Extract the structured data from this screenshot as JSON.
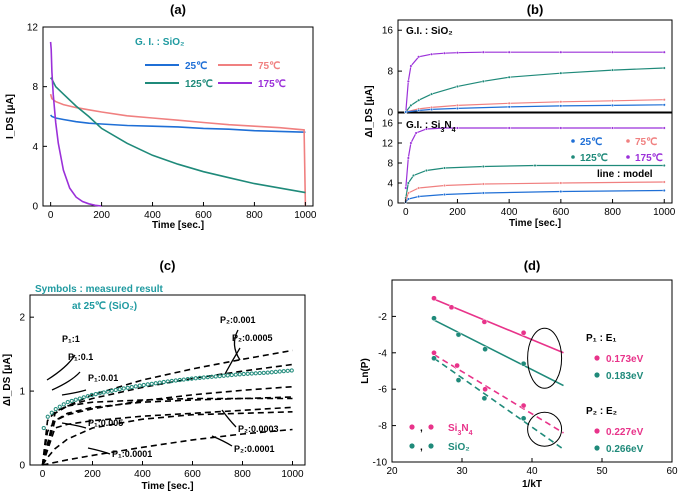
{
  "colors": {
    "c25": "#1f6fd6",
    "c75": "#f08080",
    "c125": "#1f8a7a",
    "c175": "#9b30d9",
    "pink": "#e8338a",
    "teal": "#1f8a7a",
    "tealText": "#1f9aa0"
  },
  "chart_data": [
    {
      "id": "a",
      "type": "line",
      "title": "(a)",
      "xlabel": "Time [sec.]",
      "ylabel": "I_DS [μA]",
      "xlim": [
        -30,
        1030
      ],
      "ylim": [
        0,
        12
      ],
      "xticks": [
        0,
        200,
        400,
        600,
        800,
        1000
      ],
      "yticks": [
        0,
        4,
        8,
        12
      ],
      "legend_title": "G. I. : SiO₂",
      "series": [
        {
          "name": "25℃",
          "color": "#1f6fd6",
          "x": [
            0,
            5,
            20,
            50,
            100,
            150,
            200,
            300,
            400,
            500,
            600,
            700,
            800,
            900,
            1000
          ],
          "y": [
            6.1,
            6.0,
            5.9,
            5.8,
            5.65,
            5.55,
            5.5,
            5.4,
            5.35,
            5.3,
            5.2,
            5.15,
            5.05,
            5.0,
            4.95
          ]
        },
        {
          "name": "75℃",
          "color": "#f08080",
          "x": [
            0,
            5,
            20,
            50,
            100,
            150,
            200,
            300,
            400,
            500,
            600,
            700,
            800,
            900,
            995,
            1000
          ],
          "y": [
            7.5,
            7.2,
            7.0,
            6.8,
            6.6,
            6.45,
            6.3,
            6.05,
            5.9,
            5.75,
            5.6,
            5.45,
            5.35,
            5.25,
            5.1,
            0
          ]
        },
        {
          "name": "125℃",
          "color": "#1f8a7a",
          "x": [
            0,
            5,
            20,
            50,
            100,
            150,
            200,
            300,
            400,
            500,
            600,
            700,
            800,
            900,
            1000
          ],
          "y": [
            8.6,
            8.5,
            8.0,
            7.5,
            6.7,
            6.0,
            5.2,
            4.2,
            3.4,
            2.8,
            2.3,
            1.9,
            1.5,
            1.2,
            0.9
          ]
        },
        {
          "name": "175℃",
          "color": "#9b30d9",
          "x": [
            0,
            2,
            5,
            10,
            20,
            30,
            50,
            75,
            100,
            125,
            150,
            175,
            200
          ],
          "y": [
            11.0,
            10.5,
            9.0,
            7.5,
            5.6,
            4.2,
            2.4,
            1.2,
            0.6,
            0.3,
            0.15,
            0.05,
            0
          ]
        }
      ]
    },
    {
      "id": "b_top",
      "type": "line",
      "title": "(b)",
      "xlim": [
        -30,
        1030
      ],
      "ylim": [
        0,
        18
      ],
      "yticks": [
        0,
        8,
        16
      ],
      "legend_title": "G.I. : SiO₂",
      "series": [
        {
          "name": "175℃",
          "color": "#9b30d9",
          "x": [
            0,
            10,
            20,
            50,
            100,
            150,
            200,
            300,
            400,
            600,
            800,
            1000
          ],
          "y": [
            0,
            6,
            9,
            10.8,
            11.3,
            11.5,
            11.6,
            11.7,
            11.7,
            11.7,
            11.7,
            11.7
          ]
        },
        {
          "name": "125℃",
          "color": "#1f8a7a",
          "x": [
            0,
            20,
            50,
            100,
            200,
            300,
            400,
            600,
            800,
            1000
          ],
          "y": [
            0,
            1.3,
            2.3,
            3.5,
            5,
            6,
            6.8,
            7.6,
            8.2,
            8.6
          ]
        },
        {
          "name": "75℃",
          "color": "#f08080",
          "x": [
            0,
            50,
            100,
            200,
            400,
            600,
            800,
            1000
          ],
          "y": [
            0,
            0.6,
            0.9,
            1.3,
            1.7,
            2.0,
            2.2,
            2.4
          ]
        },
        {
          "name": "25℃",
          "color": "#1f6fd6",
          "x": [
            0,
            50,
            100,
            200,
            400,
            600,
            800,
            1000
          ],
          "y": [
            0,
            0.3,
            0.5,
            0.7,
            1.0,
            1.2,
            1.3,
            1.4
          ]
        }
      ]
    },
    {
      "id": "b_bot",
      "type": "line",
      "xlabel": "Time [sec.]",
      "ylabel": "ΔI_DS [μA]",
      "xlim": [
        -30,
        1030
      ],
      "ylim": [
        0,
        18
      ],
      "xticks": [
        0,
        200,
        400,
        600,
        800,
        1000
      ],
      "yticks": [
        0,
        4,
        8,
        12,
        16
      ],
      "legend_title_a": "G.I. : Si",
      "legend_title_sub": "3",
      "legend_title_b": "N",
      "legend_title_sub2": "4",
      "legend": [
        "25℃",
        "75℃",
        "125℃",
        "175℃"
      ],
      "legend_note": "line : model",
      "series": [
        {
          "name": "175℃",
          "color": "#9b30d9",
          "x": [
            0,
            10,
            20,
            40,
            80,
            150,
            200,
            400,
            600,
            800,
            1000
          ],
          "y": [
            3,
            9,
            12,
            14,
            14.8,
            15,
            15,
            15,
            15,
            15,
            15
          ]
        },
        {
          "name": "125℃",
          "color": "#1f8a7a",
          "x": [
            0,
            10,
            30,
            80,
            150,
            300,
            500,
            1000
          ],
          "y": [
            1,
            4,
            5.5,
            6.5,
            7,
            7.3,
            7.5,
            7.5
          ]
        },
        {
          "name": "75℃",
          "color": "#f08080",
          "x": [
            0,
            10,
            50,
            150,
            300,
            600,
            1000
          ],
          "y": [
            0.5,
            2,
            3,
            3.5,
            3.8,
            4.0,
            4.2
          ]
        },
        {
          "name": "25℃",
          "color": "#1f6fd6",
          "x": [
            0,
            10,
            50,
            150,
            300,
            600,
            1000
          ],
          "y": [
            0.2,
            0.8,
            1.3,
            1.7,
            2.0,
            2.3,
            2.5
          ]
        }
      ]
    },
    {
      "id": "c",
      "type": "line",
      "title": "(c)",
      "xlabel": "Time [sec.]",
      "ylabel": "ΔI_DS [μA]",
      "xlim": [
        -50,
        1050
      ],
      "ylim": [
        0,
        2.3
      ],
      "xticks": [
        0,
        200,
        400,
        600,
        800,
        1000
      ],
      "yticks": [
        0,
        1,
        2
      ],
      "note1": "Symbols : measured result",
      "note2": "at 25℃ (SiO₂)",
      "measured": {
        "color": "#1f8a7a",
        "x": [
          5,
          20,
          50,
          100,
          150,
          200,
          300,
          400,
          500,
          600,
          700,
          800,
          900,
          1000
        ],
        "y": [
          0.5,
          0.65,
          0.75,
          0.85,
          0.9,
          0.95,
          1.02,
          1.08,
          1.13,
          1.17,
          1.2,
          1.23,
          1.25,
          1.28
        ]
      },
      "models": [
        {
          "label": "P1:1",
          "x": [
            0,
            20,
            50,
            100,
            200,
            400,
            600,
            800,
            1000
          ],
          "y": [
            0,
            0.6,
            0.72,
            0.8,
            0.85,
            0.88,
            0.9,
            0.9,
            0.9
          ]
        },
        {
          "label": "P1:0.1",
          "x": [
            0,
            20,
            50,
            100,
            200,
            400,
            600,
            800,
            1000
          ],
          "y": [
            0,
            0.45,
            0.6,
            0.7,
            0.78,
            0.85,
            0.88,
            0.9,
            0.92
          ]
        },
        {
          "label": "P2:0.001",
          "x": [
            0,
            50,
            100,
            200,
            400,
            600,
            800,
            1000
          ],
          "y": [
            0,
            0.7,
            0.8,
            0.95,
            1.15,
            1.3,
            1.43,
            1.55
          ]
        },
        {
          "label": "P2:0.0005",
          "x": [
            0,
            50,
            100,
            200,
            400,
            600,
            800,
            1000
          ],
          "y": [
            0,
            0.7,
            0.8,
            0.9,
            1.05,
            1.17,
            1.27,
            1.36
          ]
        },
        {
          "label": "P2:0.0003",
          "x": [
            0,
            50,
            100,
            200,
            400,
            600,
            800,
            1000
          ],
          "y": [
            0,
            0.6,
            0.68,
            0.76,
            0.87,
            0.95,
            1.01,
            1.06
          ]
        },
        {
          "label": "P2:0.0001",
          "x": [
            0,
            50,
            100,
            200,
            400,
            600,
            800,
            1000
          ],
          "y": [
            0,
            0.5,
            0.55,
            0.6,
            0.66,
            0.7,
            0.74,
            0.78
          ]
        },
        {
          "label": "P1:0.005",
          "x": [
            0,
            20,
            50,
            100,
            200,
            400,
            600,
            800,
            1000
          ],
          "y": [
            0,
            0.1,
            0.22,
            0.35,
            0.5,
            0.62,
            0.68,
            0.7,
            0.72
          ]
        },
        {
          "label": "P1:0.0001",
          "x": [
            0,
            100,
            200,
            400,
            600,
            800,
            1000
          ],
          "y": [
            0,
            0.07,
            0.13,
            0.24,
            0.34,
            0.42,
            0.48
          ]
        }
      ],
      "labels": {
        "p1_1": "P₁:1",
        "p1_01": "P₁:0.1",
        "p1_001": "P₁:0.01",
        "p1_0005": "P₁:0.005",
        "p1_00001": "P₁:0.0001",
        "p2_0001": "P₂:0.001",
        "p2_00005": "P₂:0.0005",
        "p2_00003": "P₂:0.0003",
        "p2_00001": "P₂:0.0001"
      }
    },
    {
      "id": "d",
      "type": "scatter",
      "title": "(d)",
      "xlabel": "1/kT",
      "ylabel": "Ln(P)",
      "xlim": [
        20,
        60
      ],
      "ylim": [
        -10,
        0
      ],
      "xticks": [
        20,
        30,
        40,
        50,
        60
      ],
      "yticks": [
        -10,
        -8,
        -6,
        -4,
        -2
      ],
      "series": [
        {
          "name": "P1 Si3N4",
          "color": "#e8338a",
          "dash": false,
          "x": [
            26,
            28.5,
            33.2,
            38.8
          ],
          "y": [
            -1.0,
            -1.5,
            -2.3,
            -2.9
          ],
          "fit": [
            [
              26,
              -1.05
            ],
            [
              44.5,
              -4.0
            ]
          ]
        },
        {
          "name": "P1 SiO2",
          "color": "#1f8a7a",
          "dash": false,
          "x": [
            26,
            29.5,
            33.3,
            38.8
          ],
          "y": [
            -2.1,
            -3.0,
            -3.8,
            -4.6
          ],
          "fit": [
            [
              26,
              -2.2
            ],
            [
              44.5,
              -5.8
            ]
          ]
        },
        {
          "name": "P2 Si3N4",
          "color": "#e8338a",
          "dash": true,
          "x": [
            26,
            29.3,
            33.3,
            38.8
          ],
          "y": [
            -4.0,
            -4.7,
            -6.0,
            -6.9
          ],
          "fit": [
            [
              26,
              -4.1
            ],
            [
              44.5,
              -8.4
            ]
          ]
        },
        {
          "name": "P2 SiO2",
          "color": "#1f8a7a",
          "dash": true,
          "x": [
            26,
            29.5,
            33.2,
            38.8
          ],
          "y": [
            -4.3,
            -5.5,
            -6.5,
            -7.6
          ],
          "fit": [
            [
              26,
              -4.3
            ],
            [
              44.5,
              -9.3
            ]
          ]
        }
      ],
      "legend": {
        "p1_label": "P₁ : E₁",
        "p2_label": "P₂ : E₂",
        "p1_si3n4": "0.173eV",
        "p1_sio2": "0.183eV",
        "p2_si3n4": "0.227eV",
        "p2_sio2": "0.266eV",
        "mat1_a": "Si",
        "mat1_sub": "3",
        "mat1_b": "N",
        "mat1_sub2": "4",
        "mat2": "SiO₂"
      }
    }
  ]
}
